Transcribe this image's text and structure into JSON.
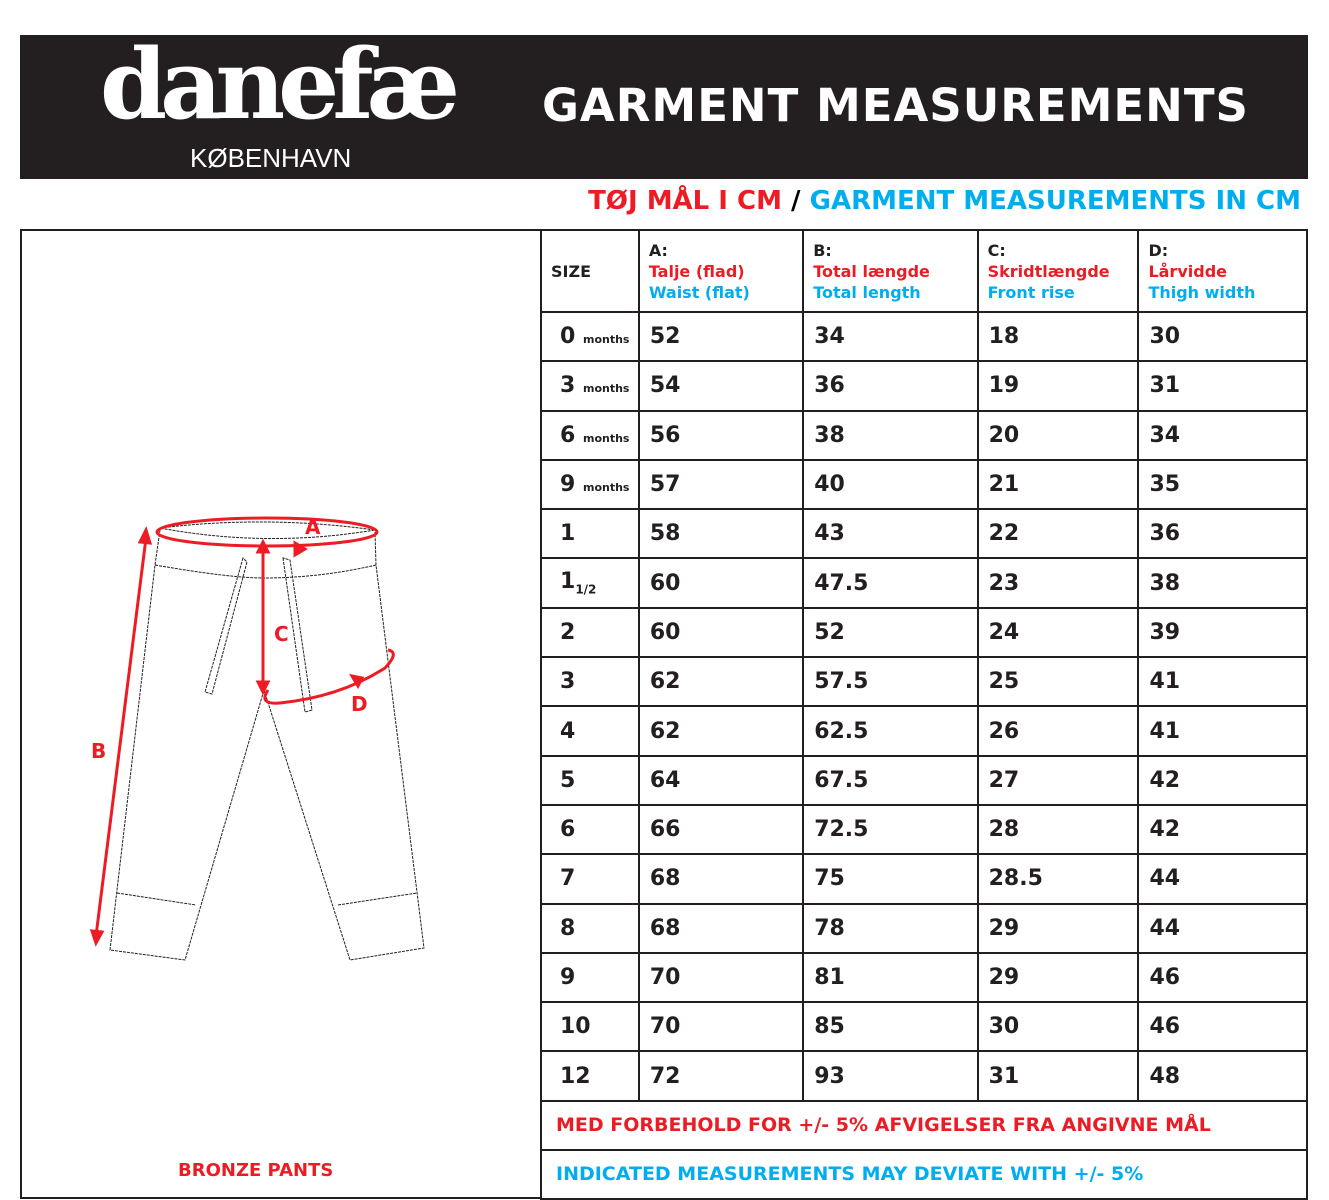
{
  "header": {
    "logo": "danefæ",
    "logo_sub": "KØBENHAVN",
    "title": "GARMENT MEASUREMENTS"
  },
  "subtitle": {
    "danish": "TØJ MÅL I CM",
    "sep": "/",
    "english": "GARMENT MEASUREMENTS IN CM"
  },
  "product": "BRONZE PANTS",
  "diagram_labels": [
    "A",
    "B",
    "C",
    "D"
  ],
  "table": {
    "size_header": "SIZE",
    "columns": [
      {
        "letter": "A:",
        "da": "Talje (flad)",
        "en": "Waist (flat)"
      },
      {
        "letter": "B:",
        "da": "Total længde",
        "en": "Total length"
      },
      {
        "letter": "C:",
        "da": "Skridtlængde",
        "en": "Front rise"
      },
      {
        "letter": "D:",
        "da": "Lårvidde",
        "en": "Thigh width"
      }
    ],
    "rows": [
      {
        "size": "0",
        "unit": "months",
        "v": [
          "52",
          "34",
          "18",
          "30"
        ]
      },
      {
        "size": "3",
        "unit": "months",
        "v": [
          "54",
          "36",
          "19",
          "31"
        ]
      },
      {
        "size": "6",
        "unit": "months",
        "v": [
          "56",
          "38",
          "20",
          "34"
        ]
      },
      {
        "size": "9",
        "unit": "months",
        "v": [
          "57",
          "40",
          "21",
          "35"
        ]
      },
      {
        "size": "1",
        "v": [
          "58",
          "43",
          "22",
          "36"
        ]
      },
      {
        "size": "1",
        "frac": "1/2",
        "v": [
          "60",
          "47.5",
          "23",
          "38"
        ]
      },
      {
        "size": "2",
        "v": [
          "60",
          "52",
          "24",
          "39"
        ]
      },
      {
        "size": "3",
        "v": [
          "62",
          "57.5",
          "25",
          "41"
        ]
      },
      {
        "size": "4",
        "v": [
          "62",
          "62.5",
          "26",
          "41"
        ]
      },
      {
        "size": "5",
        "v": [
          "64",
          "67.5",
          "27",
          "42"
        ]
      },
      {
        "size": "6",
        "v": [
          "66",
          "72.5",
          "28",
          "42"
        ]
      },
      {
        "size": "7",
        "v": [
          "68",
          "75",
          "28.5",
          "44"
        ]
      },
      {
        "size": "8",
        "v": [
          "68",
          "78",
          "29",
          "44"
        ]
      },
      {
        "size": "9",
        "v": [
          "70",
          "81",
          "29",
          "46"
        ]
      },
      {
        "size": "10",
        "v": [
          "70",
          "85",
          "30",
          "46"
        ]
      },
      {
        "size": "12",
        "v": [
          "72",
          "93",
          "31",
          "48"
        ]
      }
    ],
    "note_da": "MED FORBEHOLD FOR +/- 5% AFVIGELSER FRA ANGIVNE MÅL",
    "note_en": "INDICATED MEASUREMENTS MAY DEVIATE WITH +/- 5%"
  },
  "colors": {
    "red": "#ed1c24",
    "blue": "#00aeef",
    "dark": "#231f20"
  }
}
